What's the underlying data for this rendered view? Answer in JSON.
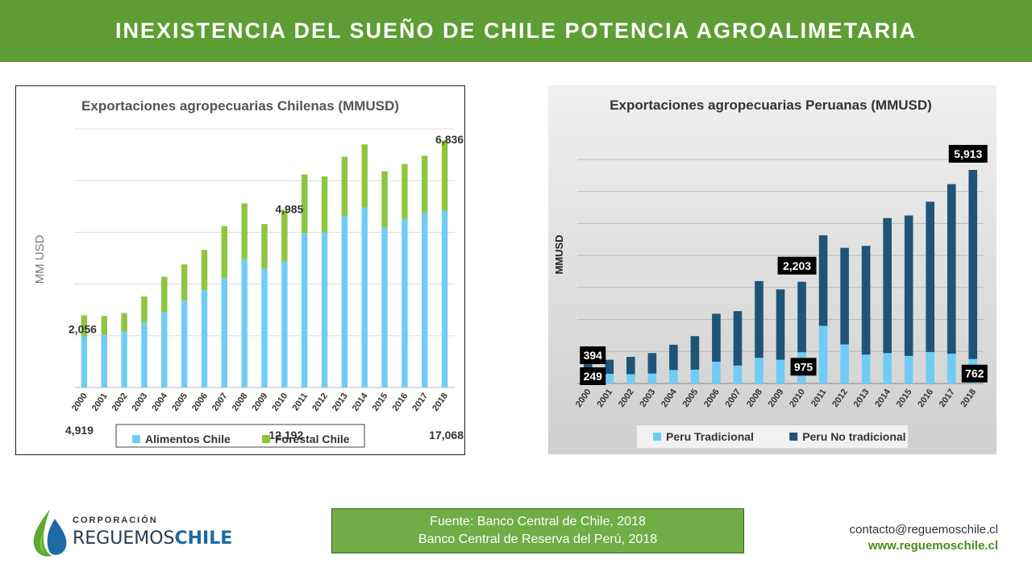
{
  "header": {
    "title": "INEXISTENCIA DEL SUEÑO DE CHILE POTENCIA AGROALIMETARIA"
  },
  "chart_data": [
    {
      "type": "bar",
      "stacked": true,
      "title": "Exportaciones agropecuarias Chilenas (MMUSD)",
      "ylabel": "MM USD",
      "xlabel": "",
      "ylim": [
        0,
        25000
      ],
      "grid": true,
      "legend": "bottom",
      "categories": [
        "2000",
        "2001",
        "2002",
        "2003",
        "2004",
        "2005",
        "2006",
        "2007",
        "2008",
        "2009",
        "2010",
        "2011",
        "2012",
        "2013",
        "2014",
        "2015",
        "2016",
        "2017",
        "2018"
      ],
      "series": [
        {
          "name": "Alimentos Chile",
          "color": "#6fcdf5",
          "values": [
            4919,
            5100,
            5400,
            6300,
            7300,
            8400,
            9400,
            10600,
            12400,
            11500,
            12192,
            14900,
            15000,
            16600,
            17400,
            15500,
            16300,
            16900,
            17068
          ]
        },
        {
          "name": "Forestal Chile",
          "color": "#8dc63f",
          "values": [
            2056,
            1800,
            1800,
            2500,
            3400,
            3500,
            3900,
            5000,
            5400,
            4300,
            4985,
            5700,
            5400,
            5700,
            6100,
            5400,
            5300,
            5500,
            6836
          ]
        }
      ],
      "data_labels": [
        {
          "category": "2000",
          "series": "Forestal Chile",
          "text": "2,056"
        },
        {
          "category": "2000",
          "series": "Alimentos Chile",
          "text": "4,919"
        },
        {
          "category": "2010",
          "series": "Forestal Chile",
          "text": "4,985"
        },
        {
          "category": "2010",
          "series": "Alimentos Chile",
          "text": "12,192"
        },
        {
          "category": "2018",
          "series": "Forestal Chile",
          "text": "6,836"
        },
        {
          "category": "2018",
          "series": "Alimentos Chile",
          "text": "17,068"
        }
      ]
    },
    {
      "type": "bar",
      "stacked": true,
      "title": "Exportaciones agropecuarias Peruanas (MMUSD)",
      "ylabel": "MMUSD",
      "xlabel": "",
      "ylim": [
        0,
        7000
      ],
      "grid": true,
      "legend": "bottom",
      "categories": [
        "2000",
        "2001",
        "2002",
        "2003",
        "2004",
        "2005",
        "2006",
        "2007",
        "2008",
        "2009",
        "2010",
        "2011",
        "2012",
        "2013",
        "2014",
        "2015",
        "2016",
        "2017",
        "2018"
      ],
      "series": [
        {
          "name": "Peru Tradicional",
          "color": "#6fcdf5",
          "values": [
            249,
            300,
            290,
            310,
            420,
            430,
            680,
            560,
            800,
            740,
            975,
            1800,
            1220,
            900,
            950,
            860,
            980,
            930,
            762
          ]
        },
        {
          "name": "Peru No tradicional",
          "color": "#1f5478",
          "values": [
            394,
            440,
            540,
            640,
            790,
            1050,
            1500,
            1700,
            2400,
            2200,
            2203,
            2830,
            3020,
            3400,
            4220,
            4390,
            4700,
            5300,
            5913
          ]
        }
      ],
      "data_labels": [
        {
          "category": "2000",
          "series": "Peru No tradicional",
          "text": "394"
        },
        {
          "category": "2000",
          "series": "Peru Tradicional",
          "text": "249"
        },
        {
          "category": "2010",
          "series": "Peru No tradicional",
          "text": "2,203"
        },
        {
          "category": "2010",
          "series": "Peru Tradicional",
          "text": "975"
        },
        {
          "category": "2018",
          "series": "Peru No tradicional",
          "text": "5,913"
        },
        {
          "category": "2018",
          "series": "Peru Tradicional",
          "text": "762"
        }
      ]
    }
  ],
  "source": {
    "line1": "Fuente: Banco Central de Chile, 2018",
    "line2": "Banco Central de Reserva del Perú, 2018"
  },
  "logo": {
    "small": "CORPORACIÓN",
    "main_a": "REGUEMOS",
    "main_b": "CHILE"
  },
  "contact": {
    "email": "contacto@reguemoschile.cl",
    "web": "www.reguemoschile.cl"
  }
}
